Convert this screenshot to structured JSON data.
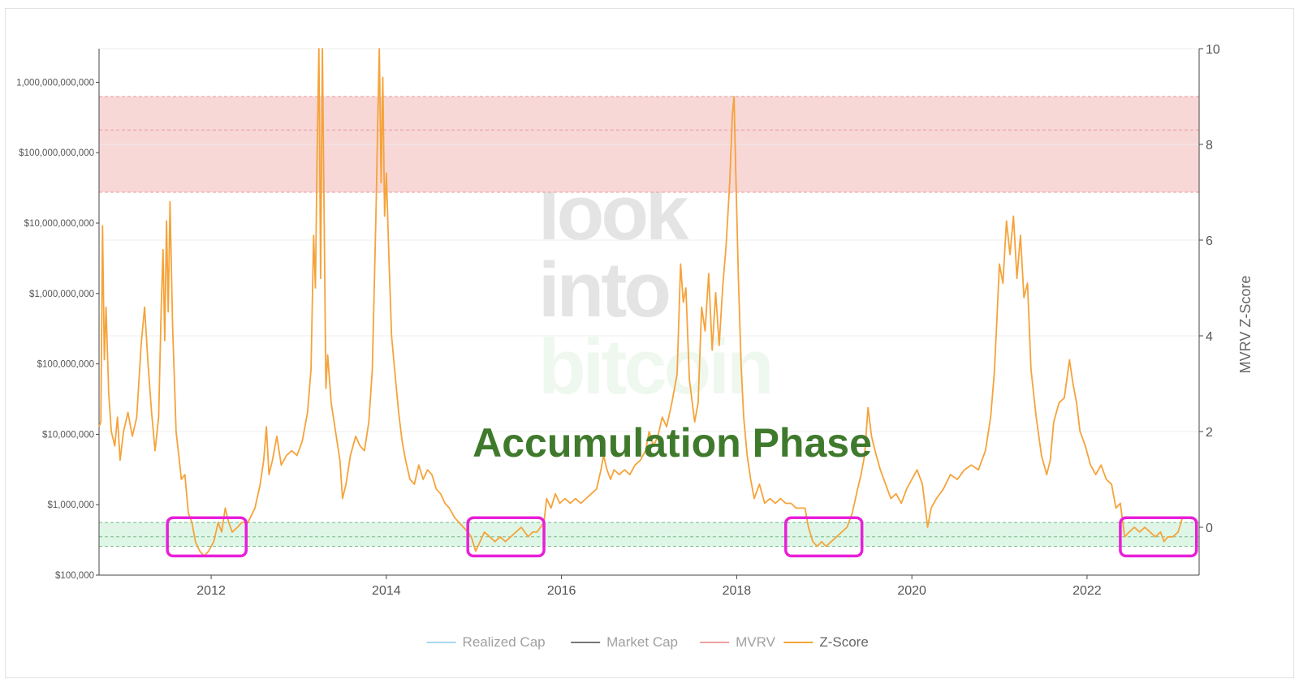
{
  "chart_data": {
    "type": "line",
    "annotation": "Accumulation Phase",
    "watermark": [
      "look",
      "into",
      "bitcoin"
    ],
    "y_left": {
      "scale": "log",
      "range": [
        100000,
        3000000000000
      ],
      "ticks": [
        100000,
        1000000,
        10000000,
        100000000,
        1000000000,
        10000000000,
        100000000000,
        1000000000000
      ],
      "tick_labels": [
        "$100,000",
        "$1,000,000",
        "$10,000,000",
        "$100,000,000",
        "$1,000,000,000",
        "$10,000,000,000",
        "$100,000,000,000",
        "1,000,000,000,000"
      ]
    },
    "y_right": {
      "label": "MVRV Z-Score",
      "range": [
        -1,
        10
      ],
      "ticks": [
        0,
        2,
        4,
        6,
        8,
        10
      ],
      "tick_labels": [
        "0",
        "2",
        "4",
        "6",
        "8",
        "10"
      ]
    },
    "x_axis": {
      "range": [
        2010.72,
        2023.28
      ],
      "ticks": [
        2012,
        2014,
        2016,
        2018,
        2020,
        2022
      ],
      "tick_labels": [
        "2012",
        "2014",
        "2016",
        "2018",
        "2020",
        "2022"
      ]
    },
    "bands": [
      {
        "zone": "high",
        "from": 7,
        "to": 9,
        "color": "#f8d7d7",
        "dashed_lines": [
          7,
          8.3,
          9
        ]
      },
      {
        "zone": "low",
        "from": -0.4,
        "to": 0.1,
        "color": "#def6e6",
        "dashed_lines": [
          -0.4,
          -0.2,
          0.1
        ]
      }
    ],
    "highlight_boxes": [
      {
        "x": [
          2011.5,
          2012.4
        ],
        "y": [
          -0.6,
          0.2
        ]
      },
      {
        "x": [
          2014.93,
          2015.8
        ],
        "y": [
          -0.6,
          0.2
        ]
      },
      {
        "x": [
          2018.56,
          2019.43
        ],
        "y": [
          -0.6,
          0.2
        ]
      },
      {
        "x": [
          2022.38,
          2023.25
        ],
        "y": [
          -0.6,
          0.2
        ]
      }
    ],
    "legend": {
      "placement": "bottom-center",
      "items": [
        {
          "label": "Realized Cap",
          "color": "#a8d8ee",
          "active": false
        },
        {
          "label": "Market Cap",
          "color": "#777777",
          "active": false
        },
        {
          "label": "MVRV",
          "color": "#f0a0a0",
          "active": false
        },
        {
          "label": "Z-Score",
          "color": "#f5a33a",
          "active": true
        }
      ]
    },
    "series": [
      {
        "name": "Z-Score",
        "color": "#f5a33a",
        "points": [
          [
            2010.72,
            2.1
          ],
          [
            2010.74,
            2.2
          ],
          [
            2010.76,
            6.3
          ],
          [
            2010.78,
            3.5
          ],
          [
            2010.8,
            4.6
          ],
          [
            2010.83,
            2.8
          ],
          [
            2010.86,
            2.0
          ],
          [
            2010.9,
            1.7
          ],
          [
            2010.93,
            2.3
          ],
          [
            2010.96,
            1.4
          ],
          [
            2011.0,
            2.0
          ],
          [
            2011.05,
            2.4
          ],
          [
            2011.1,
            1.9
          ],
          [
            2011.15,
            2.3
          ],
          [
            2011.2,
            3.8
          ],
          [
            2011.24,
            4.6
          ],
          [
            2011.28,
            3.4
          ],
          [
            2011.32,
            2.4
          ],
          [
            2011.36,
            1.6
          ],
          [
            2011.4,
            2.3
          ],
          [
            2011.43,
            4.6
          ],
          [
            2011.45,
            5.8
          ],
          [
            2011.47,
            3.9
          ],
          [
            2011.49,
            6.4
          ],
          [
            2011.51,
            4.5
          ],
          [
            2011.53,
            6.8
          ],
          [
            2011.56,
            4.2
          ],
          [
            2011.6,
            2.0
          ],
          [
            2011.63,
            1.5
          ],
          [
            2011.66,
            1.0
          ],
          [
            2011.7,
            1.1
          ],
          [
            2011.74,
            0.3
          ],
          [
            2011.78,
            0.1
          ],
          [
            2011.82,
            -0.3
          ],
          [
            2011.87,
            -0.5
          ],
          [
            2011.92,
            -0.6
          ],
          [
            2011.97,
            -0.5
          ],
          [
            2012.03,
            -0.3
          ],
          [
            2012.08,
            0.1
          ],
          [
            2012.12,
            -0.1
          ],
          [
            2012.16,
            0.4
          ],
          [
            2012.2,
            0.1
          ],
          [
            2012.24,
            -0.1
          ],
          [
            2012.3,
            0.0
          ],
          [
            2012.35,
            0.1
          ],
          [
            2012.42,
            0.1
          ],
          [
            2012.5,
            0.4
          ],
          [
            2012.56,
            0.9
          ],
          [
            2012.6,
            1.4
          ],
          [
            2012.63,
            2.1
          ],
          [
            2012.66,
            1.1
          ],
          [
            2012.7,
            1.4
          ],
          [
            2012.75,
            1.9
          ],
          [
            2012.8,
            1.3
          ],
          [
            2012.86,
            1.5
          ],
          [
            2012.92,
            1.6
          ],
          [
            2012.98,
            1.5
          ],
          [
            2013.04,
            1.8
          ],
          [
            2013.1,
            2.4
          ],
          [
            2013.14,
            3.3
          ],
          [
            2013.17,
            6.1
          ],
          [
            2013.19,
            5.0
          ],
          [
            2013.21,
            7.8
          ],
          [
            2013.23,
            10.0
          ],
          [
            2013.25,
            5.2
          ],
          [
            2013.27,
            10.0
          ],
          [
            2013.29,
            6.4
          ],
          [
            2013.31,
            2.9
          ],
          [
            2013.33,
            3.6
          ],
          [
            2013.37,
            2.6
          ],
          [
            2013.42,
            2.0
          ],
          [
            2013.47,
            1.4
          ],
          [
            2013.5,
            0.6
          ],
          [
            2013.54,
            0.9
          ],
          [
            2013.59,
            1.5
          ],
          [
            2013.65,
            1.9
          ],
          [
            2013.7,
            1.7
          ],
          [
            2013.75,
            1.6
          ],
          [
            2013.8,
            2.2
          ],
          [
            2013.84,
            3.3
          ],
          [
            2013.88,
            6.4
          ],
          [
            2013.9,
            8.3
          ],
          [
            2013.92,
            10.0
          ],
          [
            2013.94,
            7.2
          ],
          [
            2013.96,
            9.4
          ],
          [
            2013.98,
            6.5
          ],
          [
            2014.0,
            7.4
          ],
          [
            2014.03,
            5.6
          ],
          [
            2014.06,
            4.0
          ],
          [
            2014.1,
            3.2
          ],
          [
            2014.14,
            2.4
          ],
          [
            2014.18,
            1.8
          ],
          [
            2014.22,
            1.4
          ],
          [
            2014.27,
            1.0
          ],
          [
            2014.32,
            0.9
          ],
          [
            2014.37,
            1.3
          ],
          [
            2014.42,
            1.0
          ],
          [
            2014.47,
            1.2
          ],
          [
            2014.52,
            1.1
          ],
          [
            2014.57,
            0.8
          ],
          [
            2014.62,
            0.7
          ],
          [
            2014.67,
            0.5
          ],
          [
            2014.72,
            0.4
          ],
          [
            2014.78,
            0.2
          ],
          [
            2014.83,
            0.1
          ],
          [
            2014.88,
            0.0
          ],
          [
            2014.93,
            -0.1
          ],
          [
            2014.97,
            -0.2
          ],
          [
            2015.02,
            -0.5
          ],
          [
            2015.07,
            -0.3
          ],
          [
            2015.12,
            -0.1
          ],
          [
            2015.18,
            -0.2
          ],
          [
            2015.24,
            -0.3
          ],
          [
            2015.3,
            -0.2
          ],
          [
            2015.36,
            -0.3
          ],
          [
            2015.42,
            -0.2
          ],
          [
            2015.48,
            -0.1
          ],
          [
            2015.54,
            0.0
          ],
          [
            2015.58,
            -0.1
          ],
          [
            2015.62,
            -0.2
          ],
          [
            2015.67,
            -0.1
          ],
          [
            2015.72,
            -0.1
          ],
          [
            2015.76,
            0.0
          ],
          [
            2015.8,
            0.1
          ],
          [
            2015.83,
            0.6
          ],
          [
            2015.88,
            0.4
          ],
          [
            2015.93,
            0.7
          ],
          [
            2015.98,
            0.5
          ],
          [
            2016.04,
            0.6
          ],
          [
            2016.1,
            0.5
          ],
          [
            2016.16,
            0.6
          ],
          [
            2016.22,
            0.5
          ],
          [
            2016.28,
            0.6
          ],
          [
            2016.34,
            0.7
          ],
          [
            2016.4,
            0.8
          ],
          [
            2016.45,
            1.2
          ],
          [
            2016.48,
            1.5
          ],
          [
            2016.52,
            1.2
          ],
          [
            2016.56,
            1.0
          ],
          [
            2016.6,
            1.2
          ],
          [
            2016.66,
            1.1
          ],
          [
            2016.72,
            1.2
          ],
          [
            2016.78,
            1.1
          ],
          [
            2016.84,
            1.3
          ],
          [
            2016.9,
            1.4
          ],
          [
            2016.96,
            1.6
          ],
          [
            2017.0,
            2.0
          ],
          [
            2017.05,
            1.7
          ],
          [
            2017.1,
            1.9
          ],
          [
            2017.15,
            2.3
          ],
          [
            2017.2,
            2.1
          ],
          [
            2017.26,
            2.6
          ],
          [
            2017.32,
            3.2
          ],
          [
            2017.36,
            5.5
          ],
          [
            2017.39,
            4.7
          ],
          [
            2017.42,
            5.0
          ],
          [
            2017.46,
            3.1
          ],
          [
            2017.52,
            2.2
          ],
          [
            2017.56,
            2.6
          ],
          [
            2017.6,
            4.6
          ],
          [
            2017.64,
            4.1
          ],
          [
            2017.68,
            5.3
          ],
          [
            2017.72,
            3.7
          ],
          [
            2017.76,
            4.9
          ],
          [
            2017.8,
            3.8
          ],
          [
            2017.84,
            5.0
          ],
          [
            2017.88,
            5.9
          ],
          [
            2017.92,
            7.2
          ],
          [
            2017.95,
            8.6
          ],
          [
            2017.97,
            9.0
          ],
          [
            2017.99,
            7.4
          ],
          [
            2018.02,
            5.2
          ],
          [
            2018.05,
            3.4
          ],
          [
            2018.08,
            2.3
          ],
          [
            2018.12,
            1.5
          ],
          [
            2018.16,
            1.0
          ],
          [
            2018.2,
            0.6
          ],
          [
            2018.26,
            0.9
          ],
          [
            2018.32,
            0.5
          ],
          [
            2018.38,
            0.6
          ],
          [
            2018.44,
            0.5
          ],
          [
            2018.5,
            0.6
          ],
          [
            2018.56,
            0.5
          ],
          [
            2018.62,
            0.5
          ],
          [
            2018.68,
            0.4
          ],
          [
            2018.73,
            0.4
          ],
          [
            2018.78,
            0.4
          ],
          [
            2018.82,
            0.0
          ],
          [
            2018.87,
            -0.3
          ],
          [
            2018.92,
            -0.4
          ],
          [
            2018.97,
            -0.3
          ],
          [
            2019.02,
            -0.4
          ],
          [
            2019.08,
            -0.3
          ],
          [
            2019.14,
            -0.2
          ],
          [
            2019.2,
            -0.1
          ],
          [
            2019.26,
            0.0
          ],
          [
            2019.32,
            0.3
          ],
          [
            2019.38,
            0.8
          ],
          [
            2019.42,
            1.1
          ],
          [
            2019.46,
            1.5
          ],
          [
            2019.5,
            2.5
          ],
          [
            2019.54,
            1.9
          ],
          [
            2019.58,
            1.6
          ],
          [
            2019.64,
            1.2
          ],
          [
            2019.7,
            0.9
          ],
          [
            2019.76,
            0.6
          ],
          [
            2019.82,
            0.7
          ],
          [
            2019.88,
            0.5
          ],
          [
            2019.94,
            0.8
          ],
          [
            2020.0,
            1.0
          ],
          [
            2020.06,
            1.2
          ],
          [
            2020.12,
            0.9
          ],
          [
            2020.18,
            0.0
          ],
          [
            2020.22,
            0.4
          ],
          [
            2020.28,
            0.6
          ],
          [
            2020.36,
            0.8
          ],
          [
            2020.44,
            1.1
          ],
          [
            2020.52,
            1.0
          ],
          [
            2020.6,
            1.2
          ],
          [
            2020.68,
            1.3
          ],
          [
            2020.76,
            1.2
          ],
          [
            2020.84,
            1.6
          ],
          [
            2020.9,
            2.3
          ],
          [
            2020.94,
            3.2
          ],
          [
            2020.97,
            4.3
          ],
          [
            2021.0,
            5.5
          ],
          [
            2021.04,
            5.1
          ],
          [
            2021.08,
            6.4
          ],
          [
            2021.12,
            5.7
          ],
          [
            2021.16,
            6.5
          ],
          [
            2021.2,
            5.2
          ],
          [
            2021.24,
            6.1
          ],
          [
            2021.28,
            4.8
          ],
          [
            2021.32,
            5.1
          ],
          [
            2021.36,
            3.3
          ],
          [
            2021.42,
            2.3
          ],
          [
            2021.48,
            1.5
          ],
          [
            2021.54,
            1.1
          ],
          [
            2021.58,
            1.4
          ],
          [
            2021.62,
            2.2
          ],
          [
            2021.68,
            2.6
          ],
          [
            2021.74,
            2.7
          ],
          [
            2021.8,
            3.5
          ],
          [
            2021.84,
            3.0
          ],
          [
            2021.88,
            2.6
          ],
          [
            2021.92,
            2.0
          ],
          [
            2021.98,
            1.7
          ],
          [
            2022.04,
            1.3
          ],
          [
            2022.1,
            1.1
          ],
          [
            2022.16,
            1.3
          ],
          [
            2022.22,
            1.0
          ],
          [
            2022.28,
            0.9
          ],
          [
            2022.33,
            0.4
          ],
          [
            2022.38,
            0.5
          ],
          [
            2022.43,
            -0.2
          ],
          [
            2022.48,
            -0.1
          ],
          [
            2022.54,
            0.0
          ],
          [
            2022.6,
            -0.1
          ],
          [
            2022.66,
            0.0
          ],
          [
            2022.72,
            -0.1
          ],
          [
            2022.78,
            -0.2
          ],
          [
            2022.84,
            -0.1
          ],
          [
            2022.88,
            -0.3
          ],
          [
            2022.92,
            -0.2
          ],
          [
            2022.98,
            -0.2
          ],
          [
            2023.04,
            -0.1
          ],
          [
            2023.09,
            0.2
          ]
        ]
      }
    ]
  }
}
